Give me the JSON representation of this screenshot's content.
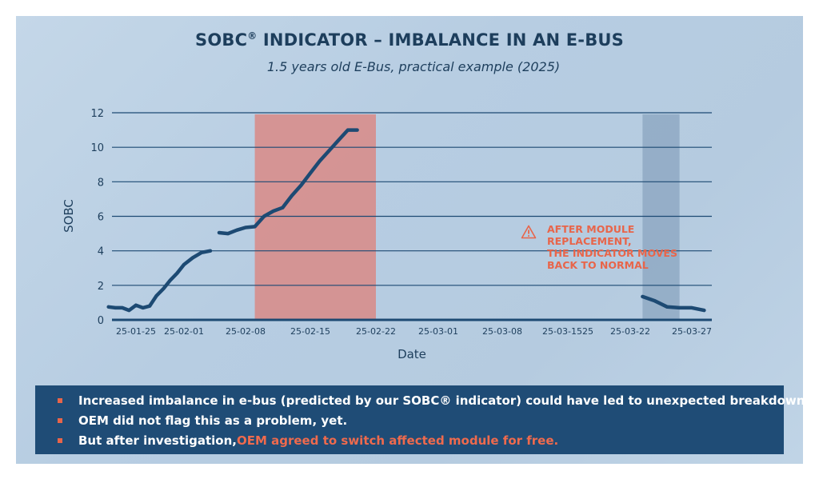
{
  "title": "SOBC",
  "title_mark": "®",
  "title_rest": " INDICATOR – IMBALANCE IN AN E-BUS",
  "subtitle": "1.5 years old E-Bus, practical example (2025)",
  "annotation": {
    "icon": "warning-triangle-icon",
    "lines": [
      "AFTER MODULE",
      "REPLACEMENT,",
      "THE INDICATOR MOVES",
      "BACK TO NORMAL"
    ],
    "color": "#e8654a"
  },
  "bullets": [
    {
      "text": "Increased imbalance in e-bus (predicted by our SOBC® indicator) could have led to unexpected breakdowns.",
      "highlight": ""
    },
    {
      "text": "OEM did not flag this as a problem, yet.",
      "highlight": ""
    },
    {
      "text": "But after investigation, ",
      "highlight": "OEM agreed to switch affected module for free."
    }
  ],
  "chart_data": {
    "type": "line",
    "title": "SOBC® INDICATOR – IMBALANCE IN AN E-BUS",
    "subtitle": "1.5 years old E-Bus, practical example (2025)",
    "xlabel": "Date",
    "ylabel": "SOBC",
    "ylim": [
      0,
      12
    ],
    "yticks": [
      "0",
      "2",
      "4",
      "6",
      "8",
      "10",
      "12"
    ],
    "xticks": [
      "25-01-25",
      "25-02-01",
      "25-02-08",
      "25-02-15",
      "25-02-22",
      "25-03-01",
      "25-03-08",
      "25-03-1525",
      "25-03-22",
      "25-03-27"
    ],
    "grid": "horizontal",
    "line_color": "#1d4a73",
    "series": [
      {
        "segments": [
          {
            "x": [
              "25-01-21",
              "25-01-22",
              "25-01-23",
              "25-01-24",
              "25-01-25",
              "25-01-26",
              "25-01-27",
              "25-01-28",
              "25-01-29",
              "25-01-30",
              "25-01-31",
              "25-02-01",
              "25-02-02",
              "25-02-03",
              "25-02-04"
            ],
            "y": [
              0.75,
              0.7,
              0.7,
              0.55,
              0.85,
              0.7,
              0.8,
              1.4,
              1.8,
              2.3,
              2.7,
              3.2,
              3.6,
              3.9,
              4.0
            ]
          },
          {
            "x": [
              "25-02-05",
              "25-02-06",
              "25-02-07",
              "25-02-08",
              "25-02-09",
              "25-02-10",
              "25-02-11",
              "25-02-12",
              "25-02-13",
              "25-02-14",
              "25-02-15",
              "25-02-16",
              "25-02-17",
              "25-02-18",
              "25-02-19",
              "25-02-20"
            ],
            "y": [
              5.05,
              5.0,
              5.2,
              5.35,
              5.4,
              6.0,
              6.3,
              6.5,
              7.2,
              7.8,
              8.5,
              9.2,
              9.8,
              10.4,
              11.0,
              11.0
            ]
          },
          {
            "x": [
              "25-03-23",
              "25-03-24",
              "25-03-25",
              "25-03-26",
              "25-03-27",
              "25-03-28"
            ],
            "y": [
              1.35,
              1.1,
              0.75,
              0.7,
              0.7,
              0.55
            ]
          }
        ]
      }
    ],
    "shaded_regions": [
      {
        "from": "25-02-09",
        "to": "25-02-22",
        "color": "#d98a86"
      },
      {
        "from": "25-03-23",
        "to": "25-03-26",
        "color": "#8fa9c3"
      }
    ]
  }
}
